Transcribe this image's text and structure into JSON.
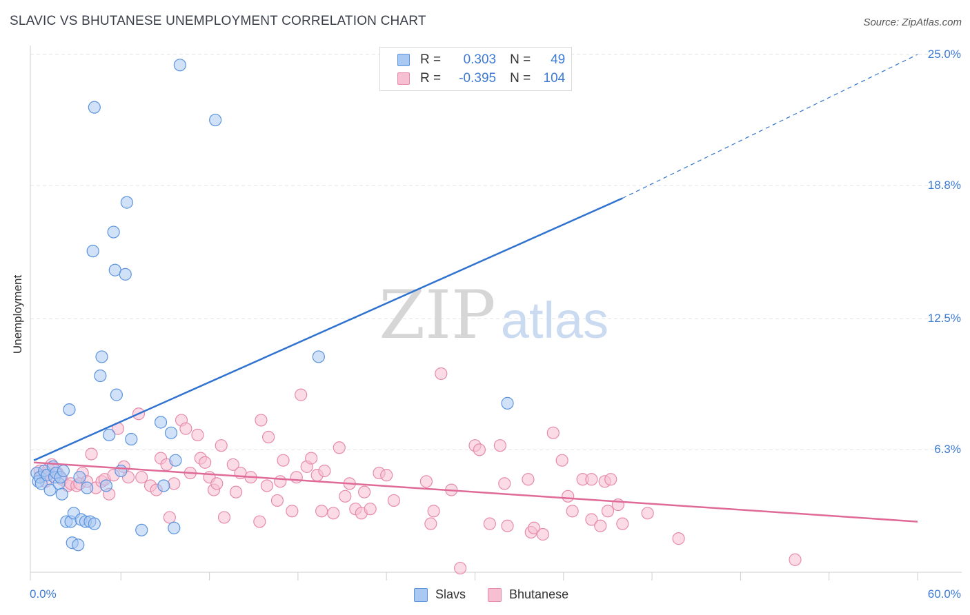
{
  "title": "SLAVIC VS BHUTANESE UNEMPLOYMENT CORRELATION CHART",
  "source": "Source: ZipAtlas.com",
  "watermark": {
    "zip": "ZIP",
    "atlas": "atlas"
  },
  "legend": {
    "rows": [
      {
        "r_label": "R =",
        "r_value": "0.303",
        "n_label": "N =",
        "n_value": "49"
      },
      {
        "r_label": "R =",
        "r_value": "-0.395",
        "n_label": "N =",
        "n_value": "104"
      }
    ]
  },
  "bottom_legend": {
    "slavs": "Slavs",
    "bhutanese": "Bhutanese"
  },
  "colors": {
    "slavs_fill": "#a9c8f2",
    "slavs_stroke": "#5b93dd",
    "slavs_line": "#2f72cf",
    "bhutanese_fill": "#f7bfd2",
    "bhutanese_stroke": "#e68aaa",
    "bhutanese_line": "#e06a97",
    "grid": "#e3e3e3",
    "tick_label": "#3d7bd4"
  },
  "chart_data": {
    "type": "scatter",
    "title": "SLAVIC VS BHUTANESE UNEMPLOYMENT CORRELATION CHART",
    "xlabel": "",
    "ylabel": "Unemployment",
    "xlim": [
      0,
      60
    ],
    "ylim": [
      0,
      25
    ],
    "y_ticks": [
      {
        "value": 6.3,
        "label": "6.3%"
      },
      {
        "value": 12.5,
        "label": "12.5%"
      },
      {
        "value": 18.8,
        "label": "18.8%"
      },
      {
        "value": 25.0,
        "label": "25.0%"
      }
    ],
    "x_ticks": [
      {
        "value": 0,
        "label": "0.0%"
      },
      {
        "value": 60,
        "label": "60.0%"
      }
    ],
    "x_minor_ticks": [
      0,
      6,
      12,
      18,
      24,
      30,
      36,
      42,
      48,
      54,
      60
    ],
    "series": [
      {
        "name": "Slavs",
        "R": 0.303,
        "N": 49,
        "points": [
          [
            0.3,
            5.2
          ],
          [
            0.4,
            4.8
          ],
          [
            0.5,
            5.0
          ],
          [
            0.6,
            4.7
          ],
          [
            0.8,
            5.3
          ],
          [
            1.0,
            5.1
          ],
          [
            1.2,
            4.4
          ],
          [
            1.4,
            5.5
          ],
          [
            1.5,
            5.0
          ],
          [
            1.6,
            5.2
          ],
          [
            1.8,
            4.7
          ],
          [
            1.9,
            5.0
          ],
          [
            2.0,
            4.2
          ],
          [
            2.1,
            5.3
          ],
          [
            2.3,
            2.9
          ],
          [
            2.5,
            8.2
          ],
          [
            2.6,
            2.9
          ],
          [
            2.7,
            1.9
          ],
          [
            2.8,
            3.3
          ],
          [
            3.1,
            1.8
          ],
          [
            3.2,
            5.0
          ],
          [
            3.3,
            3.0
          ],
          [
            3.6,
            2.9
          ],
          [
            3.7,
            4.5
          ],
          [
            3.9,
            2.9
          ],
          [
            4.1,
            15.7
          ],
          [
            4.2,
            2.8
          ],
          [
            4.2,
            22.5
          ],
          [
            4.6,
            9.8
          ],
          [
            4.7,
            10.7
          ],
          [
            5.0,
            4.6
          ],
          [
            5.2,
            7.0
          ],
          [
            5.5,
            16.6
          ],
          [
            5.6,
            14.8
          ],
          [
            5.7,
            8.9
          ],
          [
            6.0,
            5.3
          ],
          [
            6.3,
            14.6
          ],
          [
            6.4,
            18.0
          ],
          [
            6.7,
            6.8
          ],
          [
            7.4,
            2.5
          ],
          [
            8.7,
            7.6
          ],
          [
            8.9,
            4.6
          ],
          [
            9.4,
            7.1
          ],
          [
            9.6,
            2.6
          ],
          [
            9.7,
            5.8
          ],
          [
            10.0,
            24.5
          ],
          [
            12.4,
            21.9
          ],
          [
            19.4,
            10.7
          ],
          [
            32.2,
            8.5
          ]
        ]
      },
      {
        "name": "Bhutanese",
        "R": -0.395,
        "N": 104,
        "points": [
          [
            0.5,
            5.3
          ],
          [
            0.7,
            5.1
          ],
          [
            0.9,
            4.8
          ],
          [
            1.1,
            5.4
          ],
          [
            1.3,
            5.6
          ],
          [
            1.5,
            5.0
          ],
          [
            1.7,
            5.2
          ],
          [
            2.0,
            4.9
          ],
          [
            2.4,
            4.6
          ],
          [
            2.6,
            4.7
          ],
          [
            3.0,
            4.6
          ],
          [
            3.2,
            4.7
          ],
          [
            3.4,
            5.2
          ],
          [
            3.7,
            4.8
          ],
          [
            4.0,
            6.1
          ],
          [
            4.3,
            4.5
          ],
          [
            4.7,
            4.8
          ],
          [
            4.9,
            4.9
          ],
          [
            5.2,
            4.2
          ],
          [
            5.5,
            5.1
          ],
          [
            5.8,
            7.3
          ],
          [
            6.2,
            5.5
          ],
          [
            6.5,
            5.0
          ],
          [
            7.2,
            8.0
          ],
          [
            7.4,
            5.0
          ],
          [
            8.0,
            4.6
          ],
          [
            8.4,
            4.4
          ],
          [
            8.7,
            5.9
          ],
          [
            9.1,
            5.6
          ],
          [
            9.3,
            3.1
          ],
          [
            9.6,
            4.7
          ],
          [
            10.1,
            7.7
          ],
          [
            10.4,
            7.3
          ],
          [
            10.7,
            5.2
          ],
          [
            11.2,
            7.0
          ],
          [
            11.4,
            5.9
          ],
          [
            11.7,
            5.7
          ],
          [
            12.0,
            5.0
          ],
          [
            12.3,
            4.4
          ],
          [
            12.5,
            4.7
          ],
          [
            12.8,
            6.5
          ],
          [
            13.0,
            3.1
          ],
          [
            13.6,
            5.6
          ],
          [
            13.8,
            4.3
          ],
          [
            14.1,
            5.2
          ],
          [
            14.8,
            5.0
          ],
          [
            15.4,
            2.9
          ],
          [
            15.5,
            7.7
          ],
          [
            15.9,
            4.6
          ],
          [
            16.0,
            6.9
          ],
          [
            16.6,
            3.9
          ],
          [
            16.8,
            4.8
          ],
          [
            17.0,
            5.8
          ],
          [
            17.6,
            3.4
          ],
          [
            17.9,
            5.0
          ],
          [
            18.2,
            8.9
          ],
          [
            18.6,
            5.5
          ],
          [
            18.9,
            5.9
          ],
          [
            19.3,
            5.1
          ],
          [
            19.6,
            3.4
          ],
          [
            19.8,
            5.3
          ],
          [
            20.4,
            3.3
          ],
          [
            20.8,
            6.4
          ],
          [
            21.2,
            4.1
          ],
          [
            21.5,
            4.7
          ],
          [
            21.9,
            3.5
          ],
          [
            22.3,
            3.3
          ],
          [
            22.5,
            4.3
          ],
          [
            22.9,
            3.5
          ],
          [
            23.5,
            5.2
          ],
          [
            24.0,
            5.1
          ],
          [
            24.5,
            3.9
          ],
          [
            26.7,
            4.8
          ],
          [
            27.0,
            2.8
          ],
          [
            27.2,
            3.4
          ],
          [
            27.7,
            9.9
          ],
          [
            28.4,
            4.4
          ],
          [
            29.0,
            0.7
          ],
          [
            30.0,
            6.5
          ],
          [
            30.3,
            6.3
          ],
          [
            31.0,
            2.8
          ],
          [
            31.7,
            6.5
          ],
          [
            32.0,
            4.7
          ],
          [
            32.2,
            2.7
          ],
          [
            33.6,
            4.9
          ],
          [
            33.8,
            2.4
          ],
          [
            34.0,
            2.6
          ],
          [
            34.6,
            2.3
          ],
          [
            35.3,
            7.1
          ],
          [
            35.9,
            5.8
          ],
          [
            36.3,
            4.1
          ],
          [
            36.6,
            3.4
          ],
          [
            37.3,
            4.9
          ],
          [
            37.9,
            4.9
          ],
          [
            37.9,
            3.0
          ],
          [
            38.5,
            2.7
          ],
          [
            38.8,
            4.8
          ],
          [
            39.0,
            3.4
          ],
          [
            39.2,
            4.9
          ],
          [
            39.7,
            3.7
          ],
          [
            40.0,
            2.8
          ],
          [
            41.7,
            3.3
          ],
          [
            43.8,
            2.1
          ],
          [
            51.7,
            1.1
          ]
        ]
      }
    ],
    "trend_lines": [
      {
        "series": "Slavs",
        "solid": [
          [
            0.1,
            5.8
          ],
          [
            40.0,
            18.2
          ]
        ],
        "dashed": [
          [
            40.0,
            18.2
          ],
          [
            60.0,
            25.0
          ]
        ]
      },
      {
        "series": "Bhutanese",
        "solid": [
          [
            0.1,
            5.7
          ],
          [
            60.0,
            2.9
          ]
        ]
      }
    ]
  }
}
